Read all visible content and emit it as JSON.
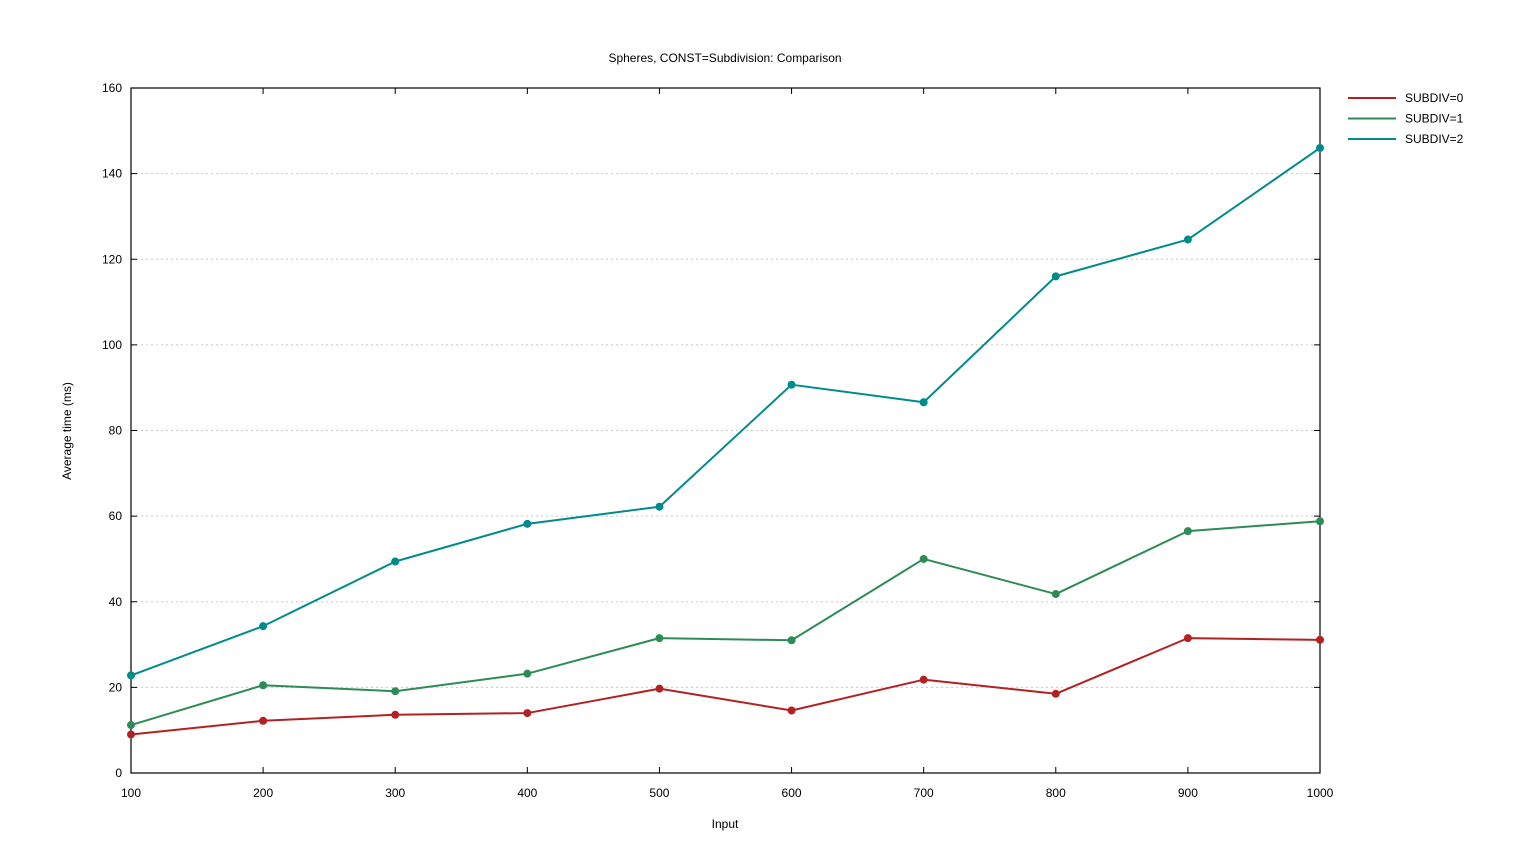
{
  "chart_data": {
    "type": "line",
    "title": "Spheres, CONST=Subdivision: Comparison",
    "xlabel": "Input",
    "ylabel": "Average time (ms)",
    "xlim": [
      100,
      1000
    ],
    "ylim": [
      0,
      160
    ],
    "x_ticks": [
      100,
      200,
      300,
      400,
      500,
      600,
      700,
      800,
      900,
      1000
    ],
    "y_ticks": [
      0,
      20,
      40,
      60,
      80,
      100,
      120,
      140,
      160
    ],
    "grid": "horizontal dotted",
    "legend_position": "outside top-right",
    "x": [
      100,
      200,
      300,
      400,
      500,
      600,
      700,
      800,
      900,
      1000
    ],
    "series": [
      {
        "name": "SUBDIV=0",
        "color": "#b22222",
        "values": [
          9.0,
          12.2,
          13.6,
          14.0,
          19.7,
          14.6,
          21.8,
          18.5,
          31.5,
          31.1
        ]
      },
      {
        "name": "SUBDIV=1",
        "color": "#2e8b57",
        "values": [
          11.2,
          20.5,
          19.1,
          23.2,
          31.5,
          31.0,
          50.0,
          41.8,
          56.5,
          58.8
        ]
      },
      {
        "name": "SUBDIV=2",
        "color": "#008b8b",
        "values": [
          22.8,
          34.3,
          49.4,
          58.2,
          62.2,
          90.7,
          86.6,
          116.0,
          124.6,
          146.0
        ]
      }
    ]
  }
}
